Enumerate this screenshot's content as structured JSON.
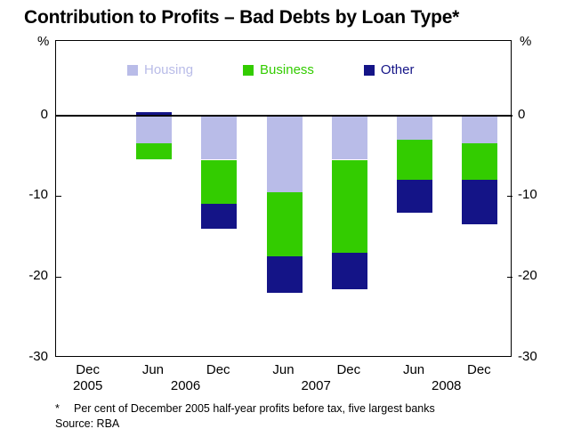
{
  "title": "Contribution to Profits – Bad Debts by Loan Type*",
  "footnote_marker": "*",
  "footnote_text": "Per cent of December 2005 half-year profits before tax, five largest banks",
  "source": "Source: RBA",
  "axis": {
    "unit_left": "%",
    "unit_right": "%",
    "y_ticks": [
      0,
      -10,
      -20,
      -30
    ]
  },
  "legend": [
    {
      "label": "Housing",
      "color": "#b9bce8"
    },
    {
      "label": "Business",
      "color": "#33cc00"
    },
    {
      "label": "Other",
      "color": "#141487"
    }
  ],
  "chart_data": {
    "type": "bar",
    "stacked": true,
    "title": "Contribution to Profits – Bad Debts by Loan Type*",
    "ylabel": "%",
    "ylim": [
      -30,
      9.2
    ],
    "grid": false,
    "legend_position": "top",
    "categories": [
      "Dec 2005",
      "Jun 2006",
      "Dec 2006",
      "Jun 2007",
      "Dec 2007",
      "Jun 2008",
      "Dec 2008"
    ],
    "x_tick_labels": [
      "Dec",
      "Jun",
      "Dec",
      "Jun",
      "Dec",
      "Jun",
      "Dec"
    ],
    "year_labels": [
      {
        "label": "2005",
        "slot": 0
      },
      {
        "label": "2006",
        "slot": 1.5
      },
      {
        "label": "2007",
        "slot": 3.5
      },
      {
        "label": "2008",
        "slot": 5.5
      }
    ],
    "series": [
      {
        "name": "Housing",
        "color": "#b9bce8",
        "values": [
          null,
          -3.5,
          -5.5,
          -9.5,
          -5.5,
          -3.0,
          -3.5
        ]
      },
      {
        "name": "Business",
        "color": "#33cc00",
        "values": [
          null,
          -2.0,
          -5.5,
          -8.0,
          -11.5,
          -5.0,
          -4.5
        ]
      },
      {
        "name": "Other",
        "color": "#141487",
        "values": [
          null,
          0.4,
          -3.0,
          -4.5,
          -4.5,
          -4.0,
          -5.5
        ]
      }
    ]
  }
}
